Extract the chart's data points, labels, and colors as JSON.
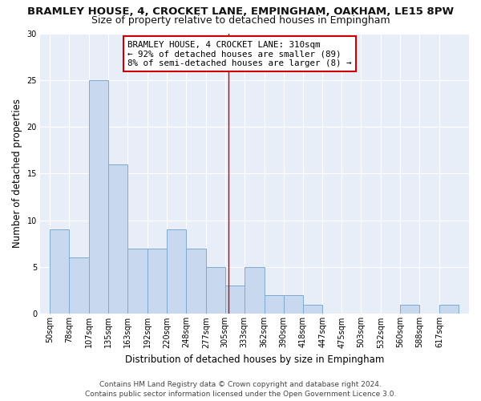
{
  "title": "BRAMLEY HOUSE, 4, CROCKET LANE, EMPINGHAM, OAKHAM, LE15 8PW",
  "subtitle": "Size of property relative to detached houses in Empingham",
  "xlabel": "Distribution of detached houses by size in Empingham",
  "ylabel": "Number of detached properties",
  "bar_color": "#c8d8ef",
  "bar_edge_color": "#7eaacc",
  "bar_left_edges": [
    50,
    78,
    107,
    135,
    163,
    192,
    220,
    248,
    277,
    305,
    333,
    362,
    390,
    418,
    447,
    475,
    503,
    532,
    560,
    588,
    617
  ],
  "bar_widths": [
    28,
    29,
    28,
    28,
    29,
    28,
    28,
    29,
    28,
    28,
    29,
    28,
    28,
    29,
    28,
    28,
    29,
    28,
    28,
    29,
    28
  ],
  "bar_heights": [
    9,
    6,
    25,
    16,
    7,
    7,
    9,
    7,
    5,
    3,
    5,
    2,
    2,
    1,
    0,
    0,
    0,
    0,
    1,
    0,
    1
  ],
  "tick_labels": [
    "50sqm",
    "78sqm",
    "107sqm",
    "135sqm",
    "163sqm",
    "192sqm",
    "220sqm",
    "248sqm",
    "277sqm",
    "305sqm",
    "333sqm",
    "362sqm",
    "390sqm",
    "418sqm",
    "447sqm",
    "475sqm",
    "503sqm",
    "532sqm",
    "560sqm",
    "588sqm",
    "617sqm"
  ],
  "tick_positions": [
    50,
    78,
    107,
    135,
    163,
    192,
    220,
    248,
    277,
    305,
    333,
    362,
    390,
    418,
    447,
    475,
    503,
    532,
    560,
    588,
    617
  ],
  "red_line_x": 310,
  "ylim": [
    0,
    30
  ],
  "yticks": [
    0,
    5,
    10,
    15,
    20,
    25,
    30
  ],
  "xlim_left": 36,
  "xlim_right": 660,
  "annotation_text_line1": "BRAMLEY HOUSE, 4 CROCKET LANE: 310sqm",
  "annotation_text_line2": "← 92% of detached houses are smaller (89)",
  "annotation_text_line3": "8% of semi-detached houses are larger (8) →",
  "footer_text": "Contains HM Land Registry data © Crown copyright and database right 2024.\nContains public sector information licensed under the Open Government Licence 3.0.",
  "bg_color": "#ffffff",
  "plot_bg_color": "#e8eef8",
  "grid_color": "#ffffff",
  "title_fontsize": 9.5,
  "subtitle_fontsize": 9,
  "axis_label_fontsize": 8.5,
  "tick_fontsize": 7,
  "annotation_fontsize": 7.8,
  "footer_fontsize": 6.5
}
